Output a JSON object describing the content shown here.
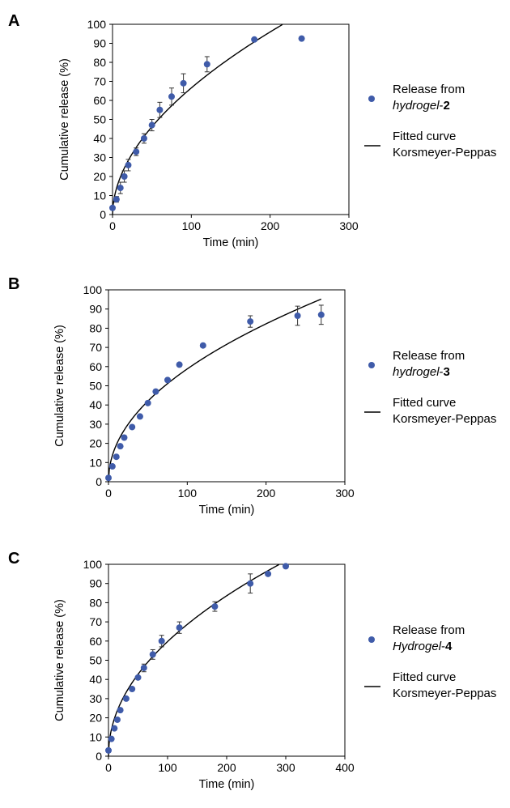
{
  "colors": {
    "marker": "#3f5ba9",
    "curve": "#000000",
    "axis": "#000000"
  },
  "legend_placement": "right",
  "chart_data": [
    {
      "panel": "A",
      "type": "scatter",
      "xlabel": "Time (min)",
      "ylabel": "Cumulative release (%)",
      "xlim": [
        0,
        300
      ],
      "ylim": [
        0,
        100
      ],
      "xticks": [
        "0",
        "100",
        "200",
        "300"
      ],
      "yticks": [
        "0",
        "10",
        "20",
        "30",
        "40",
        "50",
        "60",
        "70",
        "80",
        "90",
        "100"
      ],
      "grid": false,
      "legend": {
        "points": {
          "line1": "Release from",
          "italic": "hydrogel",
          "suffix": "-",
          "bold": "2"
        },
        "curve": {
          "line1": "Fitted curve",
          "line2": "Korsmeyer-Peppas"
        }
      },
      "points": [
        {
          "x": 0,
          "y": 3.5,
          "err": 0
        },
        {
          "x": 5,
          "y": 8,
          "err": 1.5
        },
        {
          "x": 10,
          "y": 14,
          "err": 3
        },
        {
          "x": 15,
          "y": 20,
          "err": 3
        },
        {
          "x": 20,
          "y": 26,
          "err": 3
        },
        {
          "x": 30,
          "y": 33,
          "err": 2
        },
        {
          "x": 40,
          "y": 40,
          "err": 2.5
        },
        {
          "x": 50,
          "y": 47,
          "err": 3
        },
        {
          "x": 60,
          "y": 55,
          "err": 4
        },
        {
          "x": 75,
          "y": 62,
          "err": 4.5
        },
        {
          "x": 90,
          "y": 69,
          "err": 5
        },
        {
          "x": 120,
          "y": 79,
          "err": 4
        },
        {
          "x": 180,
          "y": 92,
          "err": 0
        },
        {
          "x": 240,
          "y": 92.5,
          "err": 0
        }
      ],
      "fit": {
        "k": 5.85,
        "n": 0.528,
        "xmax": 228
      }
    },
    {
      "panel": "B",
      "type": "scatter",
      "xlabel": "Time (min)",
      "ylabel": "Cumulative release (%)",
      "xlim": [
        0,
        300
      ],
      "ylim": [
        0,
        100
      ],
      "xticks": [
        "0",
        "100",
        "200",
        "300"
      ],
      "yticks": [
        "0",
        "10",
        "20",
        "30",
        "40",
        "50",
        "60",
        "70",
        "80",
        "90",
        "100"
      ],
      "grid": false,
      "legend": {
        "points": {
          "line1": "Release from",
          "italic": "hydrogel",
          "suffix": "-",
          "bold": "3"
        },
        "curve": {
          "line1": "Fitted curve",
          "line2": "Korsmeyer-Peppas"
        }
      },
      "points": [
        {
          "x": 0,
          "y": 2,
          "err": 0
        },
        {
          "x": 5,
          "y": 8,
          "err": 0
        },
        {
          "x": 10,
          "y": 13,
          "err": 0
        },
        {
          "x": 15,
          "y": 18.5,
          "err": 0
        },
        {
          "x": 20,
          "y": 23,
          "err": 0
        },
        {
          "x": 30,
          "y": 28.5,
          "err": 0
        },
        {
          "x": 40,
          "y": 34,
          "err": 0
        },
        {
          "x": 50,
          "y": 41,
          "err": 0
        },
        {
          "x": 60,
          "y": 47,
          "err": 0
        },
        {
          "x": 75,
          "y": 53,
          "err": 0
        },
        {
          "x": 90,
          "y": 61,
          "err": 0
        },
        {
          "x": 120,
          "y": 71,
          "err": 0
        },
        {
          "x": 180,
          "y": 83.5,
          "err": 3
        },
        {
          "x": 240,
          "y": 86.5,
          "err": 5
        },
        {
          "x": 270,
          "y": 87,
          "err": 5
        }
      ],
      "fit": {
        "k": 6.3,
        "n": 0.485,
        "xmax": 270
      }
    },
    {
      "panel": "C",
      "type": "scatter",
      "xlabel": "Time (min)",
      "ylabel": "Cumulative release (%)",
      "xlim": [
        0,
        400
      ],
      "ylim": [
        0,
        100
      ],
      "xticks": [
        "0",
        "100",
        "200",
        "300",
        "400"
      ],
      "yticks": [
        "0",
        "10",
        "20",
        "30",
        "40",
        "50",
        "60",
        "70",
        "80",
        "90",
        "100"
      ],
      "grid": false,
      "legend": {
        "points": {
          "line1": "Release from",
          "italic": "Hydrogel",
          "suffix": "-",
          "bold": "4"
        },
        "curve": {
          "line1": "Fitted curve",
          "line2": "Korsmeyer-Peppas"
        }
      },
      "points": [
        {
          "x": 0,
          "y": 3,
          "err": 0
        },
        {
          "x": 5,
          "y": 9,
          "err": 0
        },
        {
          "x": 10,
          "y": 14.5,
          "err": 0
        },
        {
          "x": 15,
          "y": 19,
          "err": 0
        },
        {
          "x": 20,
          "y": 24,
          "err": 0
        },
        {
          "x": 30,
          "y": 30,
          "err": 0
        },
        {
          "x": 40,
          "y": 35,
          "err": 0
        },
        {
          "x": 50,
          "y": 41,
          "err": 0
        },
        {
          "x": 60,
          "y": 46,
          "err": 2
        },
        {
          "x": 75,
          "y": 53,
          "err": 2.5
        },
        {
          "x": 90,
          "y": 60,
          "err": 3
        },
        {
          "x": 120,
          "y": 67,
          "err": 3
        },
        {
          "x": 180,
          "y": 78,
          "err": 2.5
        },
        {
          "x": 240,
          "y": 90,
          "err": 5
        },
        {
          "x": 270,
          "y": 95,
          "err": 0
        },
        {
          "x": 300,
          "y": 99,
          "err": 0
        }
      ],
      "fit": {
        "k": 6.4,
        "n": 0.485,
        "xmax": 290
      }
    }
  ]
}
